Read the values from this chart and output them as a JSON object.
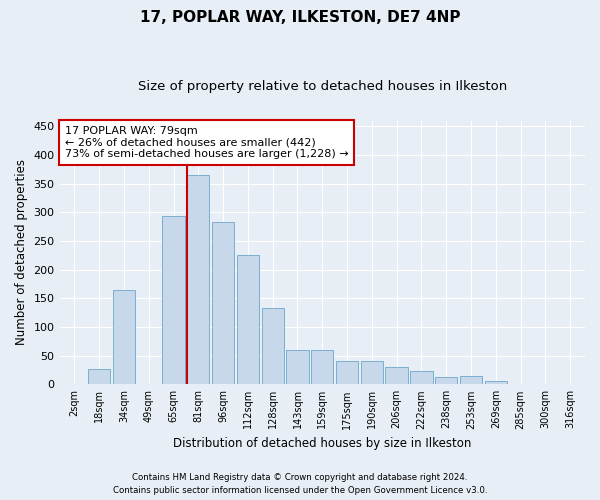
{
  "title_line1": "17, POPLAR WAY, ILKESTON, DE7 4NP",
  "title_line2": "Size of property relative to detached houses in Ilkeston",
  "xlabel": "Distribution of detached houses by size in Ilkeston",
  "ylabel": "Number of detached properties",
  "bar_color": "#c8d8eb",
  "bar_edge_color": "#7aaed0",
  "categories": [
    "2sqm",
    "18sqm",
    "34sqm",
    "49sqm",
    "65sqm",
    "81sqm",
    "96sqm",
    "112sqm",
    "128sqm",
    "143sqm",
    "159sqm",
    "175sqm",
    "190sqm",
    "206sqm",
    "222sqm",
    "238sqm",
    "253sqm",
    "269sqm",
    "285sqm",
    "300sqm",
    "316sqm"
  ],
  "values": [
    0,
    27,
    165,
    0,
    293,
    365,
    283,
    225,
    133,
    60,
    60,
    41,
    41,
    30,
    24,
    12,
    14,
    5,
    1,
    0,
    0
  ],
  "annotation_text": "17 POPLAR WAY: 79sqm\n← 26% of detached houses are smaller (442)\n73% of semi-detached houses are larger (1,228) →",
  "annotation_box_color": "#ffffff",
  "annotation_box_edge": "#cc0000",
  "vline_color": "#cc0000",
  "vline_x": 4.55,
  "ylim": [
    0,
    460
  ],
  "yticks": [
    0,
    50,
    100,
    150,
    200,
    250,
    300,
    350,
    400,
    450
  ],
  "footnote_line1": "Contains HM Land Registry data © Crown copyright and database right 2024.",
  "footnote_line2": "Contains public sector information licensed under the Open Government Licence v3.0.",
  "background_color": "#e8eef5",
  "plot_background_color": "#e8eef5",
  "grid_color": "#ffffff",
  "title_fontsize": 11,
  "subtitle_fontsize": 9.5,
  "annotation_fontsize": 8,
  "bar_width": 0.9
}
